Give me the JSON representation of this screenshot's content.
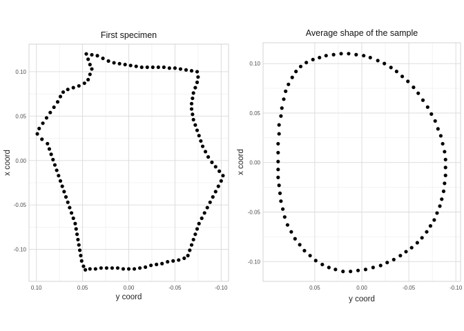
{
  "chart_data": [
    {
      "type": "scatter",
      "title": "First specimen",
      "xlabel": "y coord",
      "ylabel": "x coord",
      "x_reversed": true,
      "xlim": [
        0.108,
        -0.108
      ],
      "ylim": [
        -0.136,
        0.131
      ],
      "xticks": [
        0.1,
        0.05,
        0.0,
        -0.05,
        -0.1
      ],
      "xtick_labels": [
        "0.10",
        "0.05",
        "0.00",
        "-0.05",
        "-0.10"
      ],
      "yticks": [
        -0.1,
        -0.05,
        0.0,
        0.05,
        0.1
      ],
      "ytick_labels": [
        "-0.10",
        "-0.05",
        "0.00",
        "0.05",
        "0.10"
      ],
      "grid": true,
      "legend": "none",
      "point_color": "#000000",
      "points": [
        [
          0.04,
          0.119
        ],
        [
          0.034,
          0.118
        ],
        [
          0.028,
          0.115
        ],
        [
          0.022,
          0.112
        ],
        [
          0.016,
          0.11
        ],
        [
          0.01,
          0.109
        ],
        [
          0.004,
          0.108
        ],
        [
          -0.002,
          0.107
        ],
        [
          -0.008,
          0.106
        ],
        [
          -0.014,
          0.105
        ],
        [
          -0.02,
          0.105
        ],
        [
          -0.026,
          0.105
        ],
        [
          -0.032,
          0.105
        ],
        [
          -0.038,
          0.105
        ],
        [
          -0.044,
          0.104
        ],
        [
          -0.05,
          0.104
        ],
        [
          -0.056,
          0.103
        ],
        [
          -0.062,
          0.102
        ],
        [
          -0.068,
          0.101
        ],
        [
          -0.074,
          0.1
        ],
        [
          -0.075,
          0.094
        ],
        [
          -0.074,
          0.088
        ],
        [
          -0.072,
          0.082
        ],
        [
          -0.07,
          0.076
        ],
        [
          -0.069,
          0.07
        ],
        [
          -0.068,
          0.064
        ],
        [
          -0.068,
          0.058
        ],
        [
          -0.069,
          0.052
        ],
        [
          -0.07,
          0.046
        ],
        [
          -0.072,
          0.04
        ],
        [
          -0.074,
          0.034
        ],
        [
          -0.076,
          0.028
        ],
        [
          -0.078,
          0.022
        ],
        [
          -0.08,
          0.016
        ],
        [
          -0.083,
          0.01
        ],
        [
          -0.086,
          0.004
        ],
        [
          -0.09,
          -0.002
        ],
        [
          -0.094,
          -0.007
        ],
        [
          -0.098,
          -0.012
        ],
        [
          -0.102,
          -0.017
        ],
        [
          -0.1,
          -0.023
        ],
        [
          -0.097,
          -0.029
        ],
        [
          -0.094,
          -0.035
        ],
        [
          -0.091,
          -0.041
        ],
        [
          -0.088,
          -0.047
        ],
        [
          -0.085,
          -0.053
        ],
        [
          -0.082,
          -0.059
        ],
        [
          -0.079,
          -0.065
        ],
        [
          -0.076,
          -0.071
        ],
        [
          -0.074,
          -0.077
        ],
        [
          -0.072,
          -0.083
        ],
        [
          -0.07,
          -0.089
        ],
        [
          -0.068,
          -0.095
        ],
        [
          -0.066,
          -0.101
        ],
        [
          -0.064,
          -0.107
        ],
        [
          -0.06,
          -0.11
        ],
        [
          -0.054,
          -0.112
        ],
        [
          -0.048,
          -0.113
        ],
        [
          -0.042,
          -0.114
        ],
        [
          -0.036,
          -0.116
        ],
        [
          -0.03,
          -0.117
        ],
        [
          -0.024,
          -0.118
        ],
        [
          -0.018,
          -0.12
        ],
        [
          -0.012,
          -0.121
        ],
        [
          -0.006,
          -0.122
        ],
        [
          0.0,
          -0.122
        ],
        [
          0.006,
          -0.122
        ],
        [
          0.012,
          -0.121
        ],
        [
          0.018,
          -0.121
        ],
        [
          0.024,
          -0.121
        ],
        [
          0.03,
          -0.121
        ],
        [
          0.036,
          -0.122
        ],
        [
          0.042,
          -0.122
        ],
        [
          0.047,
          -0.123
        ],
        [
          0.049,
          -0.119
        ],
        [
          0.051,
          -0.113
        ],
        [
          0.052,
          -0.107
        ],
        [
          0.053,
          -0.101
        ],
        [
          0.054,
          -0.095
        ],
        [
          0.055,
          -0.089
        ],
        [
          0.056,
          -0.083
        ],
        [
          0.057,
          -0.077
        ],
        [
          0.058,
          -0.071
        ],
        [
          0.06,
          -0.065
        ],
        [
          0.062,
          -0.059
        ],
        [
          0.064,
          -0.053
        ],
        [
          0.066,
          -0.047
        ],
        [
          0.068,
          -0.041
        ],
        [
          0.07,
          -0.035
        ],
        [
          0.072,
          -0.029
        ],
        [
          0.074,
          -0.023
        ],
        [
          0.076,
          -0.017
        ],
        [
          0.078,
          -0.011
        ],
        [
          0.08,
          -0.005
        ],
        [
          0.082,
          0.001
        ],
        [
          0.084,
          0.007
        ],
        [
          0.086,
          0.013
        ],
        [
          0.088,
          0.019
        ],
        [
          0.094,
          0.024
        ],
        [
          0.099,
          0.03
        ],
        [
          0.097,
          0.036
        ],
        [
          0.093,
          0.042
        ],
        [
          0.089,
          0.048
        ],
        [
          0.085,
          0.054
        ],
        [
          0.081,
          0.06
        ],
        [
          0.077,
          0.066
        ],
        [
          0.074,
          0.072
        ],
        [
          0.071,
          0.077
        ],
        [
          0.066,
          0.08
        ],
        [
          0.06,
          0.082
        ],
        [
          0.054,
          0.084
        ],
        [
          0.048,
          0.087
        ],
        [
          0.044,
          0.091
        ],
        [
          0.042,
          0.097
        ],
        [
          0.04,
          0.103
        ],
        [
          0.042,
          0.108
        ],
        [
          0.044,
          0.114
        ],
        [
          0.046,
          0.12
        ]
      ]
    },
    {
      "type": "scatter",
      "title": "Average shape of the sample",
      "xlabel": "y coord",
      "ylabel": "x coord",
      "x_reversed": true,
      "xlim": [
        0.105,
        -0.105
      ],
      "ylim": [
        -0.12,
        0.121
      ],
      "xticks": [
        0.05,
        0.0,
        -0.05,
        -0.1
      ],
      "xtick_labels": [
        "0.05",
        "0.00",
        "-0.05",
        "-0.10"
      ],
      "yticks": [
        -0.1,
        -0.05,
        0.0,
        0.05,
        0.1
      ],
      "ytick_labels": [
        "-0.10",
        "-0.05",
        "0.00",
        "0.05",
        "0.10"
      ],
      "grid": true,
      "legend": "none",
      "point_color": "#000000",
      "points": [
        [
          0.089,
          0.001
        ],
        [
          0.089,
          0.01
        ],
        [
          0.089,
          0.019
        ],
        [
          0.088,
          0.029
        ],
        [
          0.088,
          0.038
        ],
        [
          0.086,
          0.047
        ],
        [
          0.085,
          0.055
        ],
        [
          0.083,
          0.064
        ],
        [
          0.081,
          0.072
        ],
        [
          0.078,
          0.079
        ],
        [
          0.074,
          0.086
        ],
        [
          0.07,
          0.092
        ],
        [
          0.065,
          0.097
        ],
        [
          0.059,
          0.101
        ],
        [
          0.052,
          0.104
        ],
        [
          0.045,
          0.106
        ],
        [
          0.038,
          0.108
        ],
        [
          0.03,
          0.109
        ],
        [
          0.022,
          0.11
        ],
        [
          0.014,
          0.11
        ],
        [
          0.006,
          0.109
        ],
        [
          -0.002,
          0.108
        ],
        [
          -0.009,
          0.106
        ],
        [
          -0.017,
          0.103
        ],
        [
          -0.024,
          0.1
        ],
        [
          -0.031,
          0.096
        ],
        [
          -0.037,
          0.092
        ],
        [
          -0.043,
          0.087
        ],
        [
          -0.049,
          0.082
        ],
        [
          -0.055,
          0.076
        ],
        [
          -0.06,
          0.07
        ],
        [
          -0.065,
          0.063
        ],
        [
          -0.07,
          0.056
        ],
        [
          -0.074,
          0.049
        ],
        [
          -0.078,
          0.042
        ],
        [
          -0.081,
          0.034
        ],
        [
          -0.084,
          0.027
        ],
        [
          -0.086,
          0.019
        ],
        [
          -0.088,
          0.011
        ],
        [
          -0.089,
          0.003
        ],
        [
          -0.089,
          -0.005
        ],
        [
          -0.089,
          -0.013
        ],
        [
          -0.088,
          -0.021
        ],
        [
          -0.087,
          -0.029
        ],
        [
          -0.085,
          -0.037
        ],
        [
          -0.083,
          -0.044
        ],
        [
          -0.08,
          -0.051
        ],
        [
          -0.077,
          -0.058
        ],
        [
          -0.073,
          -0.064
        ],
        [
          -0.069,
          -0.07
        ],
        [
          -0.064,
          -0.076
        ],
        [
          -0.059,
          -0.081
        ],
        [
          -0.053,
          -0.086
        ],
        [
          -0.047,
          -0.09
        ],
        [
          -0.041,
          -0.094
        ],
        [
          -0.034,
          -0.098
        ],
        [
          -0.027,
          -0.101
        ],
        [
          -0.02,
          -0.104
        ],
        [
          -0.012,
          -0.106
        ],
        [
          -0.004,
          -0.108
        ],
        [
          0.004,
          -0.109
        ],
        [
          0.012,
          -0.11
        ],
        [
          0.02,
          -0.11
        ],
        [
          0.028,
          -0.108
        ],
        [
          0.035,
          -0.106
        ],
        [
          0.042,
          -0.103
        ],
        [
          0.049,
          -0.099
        ],
        [
          0.055,
          -0.094
        ],
        [
          0.061,
          -0.089
        ],
        [
          0.066,
          -0.083
        ],
        [
          0.071,
          -0.077
        ],
        [
          0.075,
          -0.07
        ],
        [
          0.079,
          -0.063
        ],
        [
          0.082,
          -0.055
        ],
        [
          0.084,
          -0.047
        ],
        [
          0.086,
          -0.039
        ],
        [
          0.087,
          -0.031
        ],
        [
          0.088,
          -0.023
        ],
        [
          0.089,
          -0.015
        ],
        [
          0.089,
          -0.007
        ]
      ]
    }
  ]
}
